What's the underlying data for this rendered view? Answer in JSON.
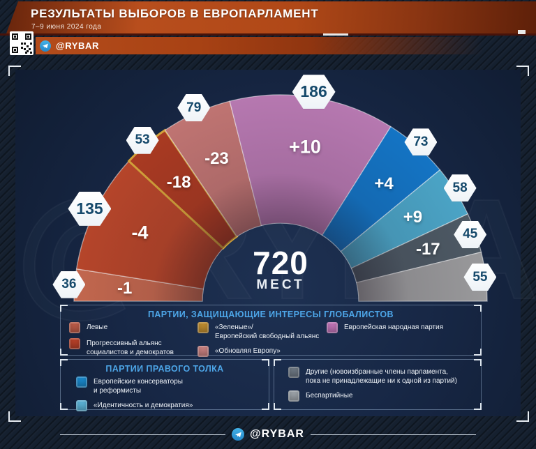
{
  "header": {
    "title": "РЕЗУЛЬТАТЫ ВЫБОРОВ В ЕВРОПАРЛАМЕНТ",
    "subtitle": "7–9 июня 2024 года",
    "channel": "@RYBAR"
  },
  "watermark": "@RYBAR",
  "center": {
    "total": "720",
    "total_label": "МЕСТ"
  },
  "chart_data": {
    "type": "parliament-arc",
    "title": "РЕЗУЛЬТАТЫ ВЫБОРОВ В ЕВРОПАРЛАМЕНТ",
    "total_seats": 720,
    "segments": [
      {
        "party": "Левые",
        "seats": 36,
        "change": "-1",
        "color": "#c2674e"
      },
      {
        "party": "Прогрессивный альянс социалистов и демократов",
        "seats": 135,
        "change": "-4",
        "color": "#b5452a"
      },
      {
        "party": "«Зеленые»/Европейский свободный альянс",
        "seats": 53,
        "change": "-18",
        "color": "#a93a22",
        "edge_color": "#d2a13a"
      },
      {
        "party": "«Обновляя Европу»",
        "seats": 79,
        "change": "-23",
        "color": "#bf7472"
      },
      {
        "party": "Европейская народная партия",
        "seats": 186,
        "change": "+10",
        "color": "#b678b0"
      },
      {
        "party": "Европейские консерваторы и реформисты",
        "seats": 73,
        "change": "+4",
        "color": "#1474c4"
      },
      {
        "party": "«Идентичность и демократия»",
        "seats": 58,
        "change": "+9",
        "color": "#4ba4c6"
      },
      {
        "party": "Другие (новоизбранные члены парламента, пока не принадлежащие ни к одной из партий)",
        "seats": 45,
        "change": "-17",
        "color": "#4d5964"
      },
      {
        "party": "Беспартийные",
        "seats": 55,
        "change": null,
        "color": "#99999b"
      }
    ]
  },
  "legend": {
    "globalists": {
      "title": "ПАРТИИ, ЗАЩИЩАЮЩИЕ ИНТЕРЕСЫ ГЛОБАЛИСТОВ",
      "columns": [
        [
          {
            "label": "Левые",
            "color": "#b85a47"
          },
          {
            "label": "Прогрессивный альянс\nсоциалистов и демократов",
            "color": "#b43f28"
          }
        ],
        [
          {
            "label": "«Зеленые»/\nЕвропейский свободный альянс",
            "color": "#bb8a2e"
          },
          {
            "label": "«Обновляя Европу»",
            "color": "#c47d7d"
          }
        ],
        [
          {
            "label": "Европейская народная партия",
            "color": "#bd72b4"
          }
        ]
      ]
    },
    "rightwing": {
      "title": "ПАРТИИ ПРАВОГО ТОЛКА",
      "items": [
        {
          "label": "Европейские консерваторы\nи реформисты",
          "color": "#1a86c8"
        },
        {
          "label": "«Идентичность и демократия»",
          "color": "#5ab0d4"
        }
      ]
    },
    "others": {
      "items": [
        {
          "label": "Другие (новоизбранные члены парламента,\nпока не принадлежащие ни к одной из партий)",
          "color": "#6b7580"
        },
        {
          "label": "Беспартийные",
          "color": "#9aa0a6"
        }
      ]
    }
  },
  "footer": {
    "channel": "@RYBAR"
  }
}
